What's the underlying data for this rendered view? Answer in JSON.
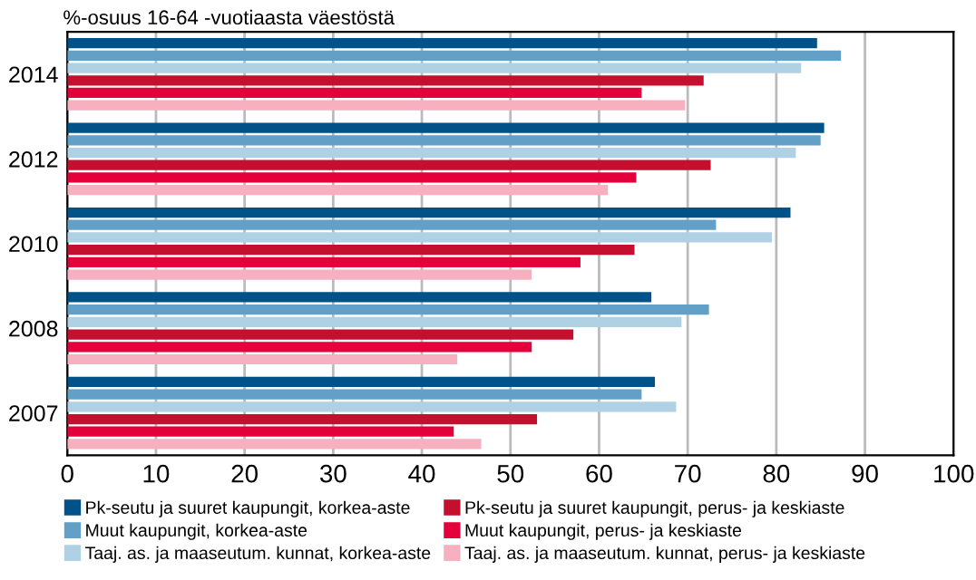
{
  "chart_data": {
    "type": "bar",
    "orientation": "horizontal",
    "title": "%-osuus 16-64 -vuotiaasta väestöstä",
    "categories": [
      "2014",
      "2012",
      "2010",
      "2008",
      "2007"
    ],
    "series": [
      {
        "name": "Pk-seutu ja suuret kaupungit, korkea-aste",
        "color": "#005289",
        "values": [
          84.6,
          85.4,
          81.6,
          65.9,
          66.3
        ]
      },
      {
        "name": "Muut kaupungit, korkea-aste",
        "color": "#62a0c8",
        "values": [
          87.3,
          85.0,
          73.2,
          72.4,
          64.8
        ]
      },
      {
        "name": "Taaj. as. ja maaseutum. kunnat, korkea-aste",
        "color": "#b0d0e4",
        "values": [
          82.8,
          82.2,
          79.5,
          69.3,
          68.7
        ]
      },
      {
        "name": "Pk-seutu ja suuret kaupungit, perus- ja keskiaste",
        "color": "#c4102e",
        "values": [
          71.8,
          72.6,
          64.0,
          57.1,
          53.0
        ]
      },
      {
        "name": "Muut kaupungit, perus- ja keskiaste",
        "color": "#e4003a",
        "values": [
          64.8,
          64.2,
          57.9,
          52.4,
          43.6
        ]
      },
      {
        "name": "Taaj. as. ja maaseutum. kunnat, perus- ja keskiaste",
        "color": "#f6b0c0",
        "values": [
          69.7,
          61.0,
          52.4,
          44.0,
          46.7
        ]
      }
    ],
    "xlim": [
      0,
      100
    ],
    "xticks": [
      0,
      10,
      20,
      30,
      40,
      50,
      60,
      70,
      80,
      90,
      100
    ],
    "grid": "x",
    "legend": "bottom"
  }
}
